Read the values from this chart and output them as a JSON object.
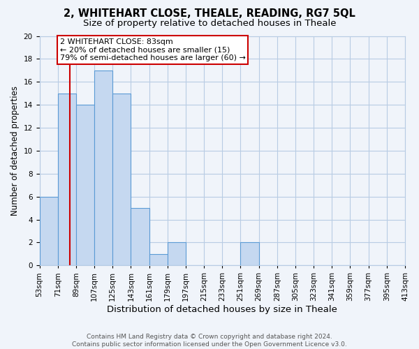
{
  "title": "2, WHITEHART CLOSE, THEALE, READING, RG7 5QL",
  "subtitle": "Size of property relative to detached houses in Theale",
  "xlabel": "Distribution of detached houses by size in Theale",
  "ylabel": "Number of detached properties",
  "bin_edges": [
    53,
    71,
    89,
    107,
    125,
    143,
    161,
    179,
    197,
    215,
    233,
    251,
    269,
    287,
    305,
    323,
    341,
    359,
    377,
    395,
    413
  ],
  "bar_heights": [
    6,
    15,
    14,
    17,
    15,
    5,
    1,
    2,
    0,
    0,
    0,
    2,
    0,
    0,
    0,
    0,
    0,
    0,
    0,
    0
  ],
  "bar_color": "#c5d8f0",
  "bar_edge_color": "#5b9bd5",
  "property_size": 83,
  "red_line_color": "#cc0000",
  "annotation_text": "2 WHITEHART CLOSE: 83sqm\n← 20% of detached houses are smaller (15)\n79% of semi-detached houses are larger (60) →",
  "annotation_box_facecolor": "#ffffff",
  "annotation_box_edgecolor": "#cc0000",
  "ylim": [
    0,
    20
  ],
  "yticks": [
    0,
    2,
    4,
    6,
    8,
    10,
    12,
    14,
    16,
    18,
    20
  ],
  "background_color": "#f0f4fa",
  "grid_color": "#b8cce4",
  "footnote": "Contains HM Land Registry data © Crown copyright and database right 2024.\nContains public sector information licensed under the Open Government Licence v3.0.",
  "title_fontsize": 10.5,
  "subtitle_fontsize": 9.5,
  "xlabel_fontsize": 9.5,
  "ylabel_fontsize": 8.5,
  "tick_fontsize": 7.5,
  "annotation_fontsize": 8,
  "footnote_fontsize": 6.5
}
